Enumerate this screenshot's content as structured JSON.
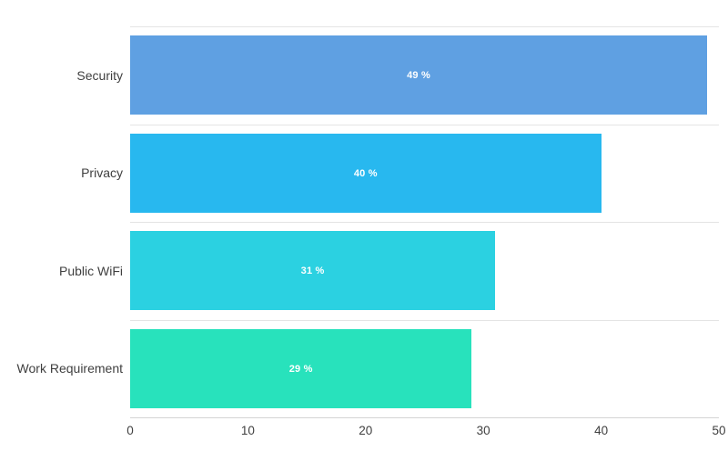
{
  "chart_data": {
    "type": "bar",
    "orientation": "horizontal",
    "title": "",
    "xlabel": "",
    "ylabel": "",
    "categories": [
      "Security",
      "Privacy",
      "Public WiFi",
      "Work Requirement"
    ],
    "values": [
      49,
      40,
      31,
      29
    ],
    "bar_labels": [
      "49 %",
      "40 %",
      "31 %",
      "29 %"
    ],
    "bar_colors": [
      "#5FA0E2",
      "#28B8EF",
      "#2BD1E1",
      "#28E2BC"
    ],
    "xlim": [
      0,
      50
    ],
    "x_ticks": [
      "0",
      "10",
      "20",
      "30",
      "40",
      "50"
    ],
    "x_tick_values": [
      0,
      10,
      20,
      30,
      40,
      50
    ],
    "grid": true,
    "legend": false,
    "colors": {
      "background": "#FFFFFF",
      "grid_line": "#E4E4E4",
      "axis_line": "#D4D4D4",
      "category_text": "#3F3F3F",
      "tick_text": "#3F3F3F",
      "bar_label_text": "#FFFFFF"
    }
  }
}
